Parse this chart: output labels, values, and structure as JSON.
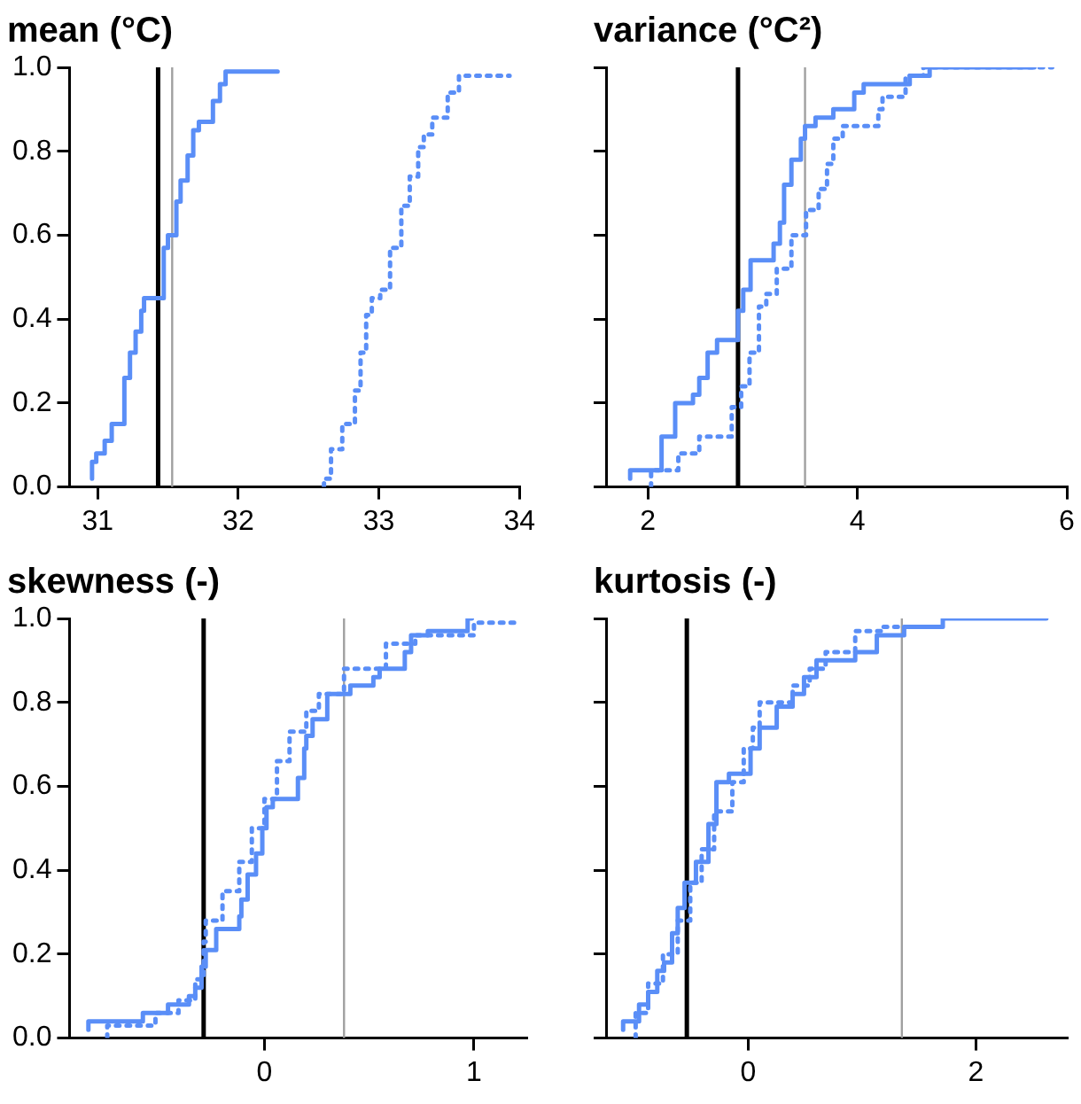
{
  "chart_data": [
    {
      "type": "step",
      "title": "mean (°C)",
      "xlim": [
        30.8,
        34
      ],
      "xticks": [
        31,
        32,
        33,
        34
      ],
      "ylim": [
        0,
        1
      ],
      "yticks": [
        {
          "value": 0,
          "label": "0.0"
        },
        {
          "value": 0.2,
          "label": "0.2"
        },
        {
          "value": 0.4,
          "label": "0.4"
        },
        {
          "value": 0.6,
          "label": "0.6"
        },
        {
          "value": 0.8,
          "label": "0.8"
        },
        {
          "value": 1,
          "label": "1.0"
        }
      ],
      "grid": false,
      "legend": false,
      "marker": "none",
      "series": [
        {
          "color": "#5a8ef7",
          "line_style": "solid",
          "x": [
            30.96,
            30.99,
            31.05,
            31.1,
            31.19,
            31.23,
            31.27,
            31.31,
            31.33,
            31.47,
            31.5,
            31.56,
            31.59,
            31.64,
            31.68,
            31.72,
            31.82,
            31.87,
            31.91,
            32.0,
            32.28
          ],
          "values": [
            0.02,
            0.06,
            0.08,
            0.11,
            0.15,
            0.26,
            0.32,
            0.37,
            0.42,
            0.45,
            0.57,
            0.6,
            0.68,
            0.73,
            0.79,
            0.85,
            0.87,
            0.92,
            0.96,
            0.99,
            0.99
          ]
        },
        {
          "color": "#5a8ef7",
          "line_style": "dotted",
          "x": [
            32.61,
            32.66,
            32.74,
            32.83,
            32.87,
            32.91,
            32.95,
            33.01,
            33.08,
            33.16,
            33.22,
            33.28,
            33.32,
            33.38,
            33.49,
            33.57,
            33.65,
            33.93
          ],
          "values": [
            0,
            0.02,
            0.09,
            0.15,
            0.23,
            0.32,
            0.41,
            0.45,
            0.47,
            0.57,
            0.67,
            0.74,
            0.81,
            0.84,
            0.88,
            0.94,
            0.98,
            0.98
          ]
        }
      ],
      "ref_lines": [
        {
          "axis": "x",
          "value": 31.43,
          "color": "#000000"
        },
        {
          "axis": "x",
          "value": 31.53,
          "color": "#a0a0a0"
        }
      ]
    },
    {
      "type": "step",
      "title": "variance (°C²)",
      "xlim": [
        1.6,
        6
      ],
      "xticks": [
        2,
        4,
        6
      ],
      "ylim": [
        0,
        1
      ],
      "yticks": [
        0,
        0.2,
        0.4,
        0.6,
        0.8,
        1
      ],
      "tick_labels": "x",
      "grid": false,
      "legend": false,
      "marker": "none",
      "series": [
        {
          "color": "#5a8ef7",
          "line_style": "solid",
          "x": [
            1.83,
            2.13,
            2.26,
            2.43,
            2.49,
            2.57,
            2.66,
            2.86,
            2.91,
            2.98,
            3.07,
            3.2,
            3.26,
            3.3,
            3.37,
            3.46,
            3.5,
            3.6,
            3.77,
            3.97,
            4.06,
            4.5,
            4.69,
            5.69
          ],
          "values": [
            0.02,
            0.04,
            0.12,
            0.2,
            0.22,
            0.26,
            0.32,
            0.35,
            0.42,
            0.47,
            0.54,
            0.54,
            0.58,
            0.63,
            0.72,
            0.78,
            0.83,
            0.86,
            0.88,
            0.9,
            0.94,
            0.96,
            0.98,
            1.0
          ]
        },
        {
          "color": "#5a8ef7",
          "line_style": "dotted",
          "x": [
            2.03,
            2.29,
            2.49,
            2.8,
            2.89,
            2.97,
            3.06,
            3.13,
            3.23,
            3.37,
            3.51,
            3.63,
            3.71,
            3.77,
            3.86,
            4.2,
            4.24,
            4.46,
            4.63,
            5.86
          ],
          "values": [
            0,
            0.04,
            0.08,
            0.12,
            0.19,
            0.24,
            0.32,
            0.43,
            0.46,
            0.52,
            0.6,
            0.66,
            0.71,
            0.77,
            0.83,
            0.86,
            0.9,
            0.93,
            0.98,
            1.0
          ]
        }
      ],
      "ref_lines": [
        {
          "axis": "x",
          "value": 2.86,
          "color": "#000000"
        },
        {
          "axis": "x",
          "value": 3.5,
          "color": "#a0a0a0"
        }
      ]
    },
    {
      "type": "step",
      "title": "skewness (-)",
      "xlim": [
        -0.93,
        1.25
      ],
      "xticks": [
        0,
        1
      ],
      "ylim": [
        0,
        1
      ],
      "yticks": [
        {
          "value": 0,
          "label": "0.0"
        },
        {
          "value": 0.2,
          "label": "0.2"
        },
        {
          "value": 0.4,
          "label": "0.4"
        },
        {
          "value": 0.6,
          "label": "0.6"
        },
        {
          "value": 0.8,
          "label": "0.8"
        },
        {
          "value": 1,
          "label": "1.0"
        }
      ],
      "grid": false,
      "legend": false,
      "marker": "none",
      "series": [
        {
          "color": "#5a8ef7",
          "line_style": "solid",
          "x": [
            -0.84,
            -0.58,
            -0.46,
            -0.36,
            -0.33,
            -0.3,
            -0.28,
            -0.23,
            -0.12,
            -0.11,
            -0.08,
            -0.04,
            -0.01,
            0.01,
            0.04,
            0.16,
            0.19,
            0.2,
            0.23,
            0.3,
            0.41,
            0.52,
            0.55,
            0.67,
            0.7,
            0.78,
            0.97,
            0.99
          ],
          "values": [
            0.02,
            0.04,
            0.06,
            0.08,
            0.1,
            0.12,
            0.17,
            0.21,
            0.26,
            0.29,
            0.33,
            0.39,
            0.44,
            0.5,
            0.55,
            0.57,
            0.62,
            0.69,
            0.72,
            0.76,
            0.82,
            0.84,
            0.86,
            0.88,
            0.92,
            0.96,
            0.97,
            1.0
          ]
        },
        {
          "color": "#5a8ef7",
          "line_style": "dotted",
          "x": [
            -0.75,
            -0.52,
            -0.41,
            -0.33,
            -0.29,
            -0.28,
            -0.2,
            -0.12,
            -0.06,
            0.0,
            0.06,
            0.12,
            0.2,
            0.26,
            0.38,
            0.58,
            0.72,
            1.0,
            1.22
          ],
          "values": [
            0,
            0.03,
            0.06,
            0.09,
            0.14,
            0.23,
            0.28,
            0.35,
            0.42,
            0.5,
            0.57,
            0.66,
            0.73,
            0.78,
            0.82,
            0.88,
            0.94,
            0.96,
            0.99
          ]
        }
      ],
      "ref_lines": [
        {
          "axis": "x",
          "value": -0.29,
          "color": "#000000"
        },
        {
          "axis": "x",
          "value": 0.38,
          "color": "#a0a0a0"
        }
      ]
    },
    {
      "type": "step",
      "title": "kurtosis (-)",
      "xlim": [
        -1.25,
        2.8
      ],
      "xticks": [
        0,
        2
      ],
      "ylim": [
        0,
        1
      ],
      "yticks": [
        0,
        0.2,
        0.4,
        0.6,
        0.8,
        1
      ],
      "tick_labels": "x",
      "grid": false,
      "legend": false,
      "marker": "none",
      "series": [
        {
          "color": "#5a8ef7",
          "line_style": "solid",
          "x": [
            -1.1,
            -0.96,
            -0.88,
            -0.8,
            -0.74,
            -0.67,
            -0.62,
            -0.56,
            -0.46,
            -0.35,
            -0.28,
            -0.17,
            0.02,
            0.1,
            0.25,
            0.39,
            0.49,
            0.6,
            0.78,
            0.94,
            1.13,
            1.37,
            1.71,
            2.62
          ],
          "values": [
            0.02,
            0.04,
            0.08,
            0.11,
            0.16,
            0.18,
            0.25,
            0.31,
            0.37,
            0.42,
            0.51,
            0.61,
            0.63,
            0.69,
            0.74,
            0.79,
            0.82,
            0.86,
            0.9,
            0.9,
            0.92,
            0.96,
            0.98,
            1.0
          ]
        },
        {
          "color": "#5a8ef7",
          "line_style": "dotted",
          "x": [
            -0.99,
            -0.88,
            -0.75,
            -0.62,
            -0.51,
            -0.41,
            -0.3,
            -0.14,
            -0.04,
            0.04,
            0.1,
            0.17,
            0.39,
            0.54,
            0.68,
            0.94,
            1.18,
            1.66
          ],
          "values": [
            0,
            0.06,
            0.13,
            0.2,
            0.28,
            0.37,
            0.45,
            0.54,
            0.61,
            0.69,
            0.74,
            0.8,
            0.8,
            0.84,
            0.88,
            0.92,
            0.97,
            0.98
          ]
        }
      ],
      "ref_lines": [
        {
          "axis": "x",
          "value": -0.54,
          "color": "#000000"
        },
        {
          "axis": "x",
          "value": 1.35,
          "color": "#a0a0a0"
        }
      ]
    }
  ]
}
